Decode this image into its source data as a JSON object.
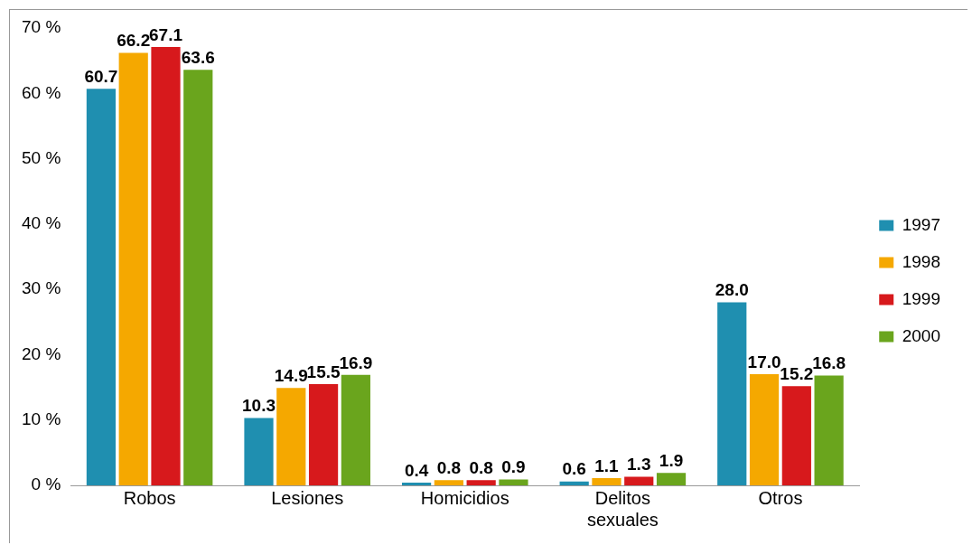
{
  "chart_data": {
    "type": "bar",
    "categories": [
      "Robos",
      "Lesiones",
      "Homicidios",
      "Delitos sexuales",
      "Otros"
    ],
    "series": [
      {
        "name": "1997",
        "color": "#1f8fb0",
        "values": [
          60.7,
          10.3,
          0.4,
          0.6,
          28.0
        ],
        "value_labels": [
          "60.7",
          "10.3",
          "0.4",
          "0.6",
          "28.0"
        ]
      },
      {
        "name": "1998",
        "color": "#f5a800",
        "values": [
          66.2,
          14.9,
          0.8,
          1.1,
          17.0
        ],
        "value_labels": [
          "66.2",
          "14.9",
          "0.8",
          "1.1",
          "17.0"
        ]
      },
      {
        "name": "1999",
        "color": "#d7191c",
        "values": [
          67.1,
          15.5,
          0.8,
          1.3,
          15.2
        ],
        "value_labels": [
          "67.1",
          "15.5",
          "0.8",
          "1.3",
          "15.2"
        ]
      },
      {
        "name": "2000",
        "color": "#6aa51d",
        "values": [
          63.6,
          16.9,
          0.9,
          1.9,
          16.8
        ],
        "value_labels": [
          "63.6",
          "16.9",
          "0.9",
          "1.9",
          "16.8"
        ]
      }
    ],
    "ylim": [
      0,
      70
    ],
    "yticks": [
      {
        "value": 0,
        "label": "0 %"
      },
      {
        "value": 10,
        "label": "10 %"
      },
      {
        "value": 20,
        "label": "20 %"
      },
      {
        "value": 30,
        "label": "30 %"
      },
      {
        "value": 40,
        "label": "40 %"
      },
      {
        "value": 50,
        "label": "50 %"
      },
      {
        "value": 60,
        "label": "60 %"
      },
      {
        "value": 70,
        "label": "70 %"
      }
    ],
    "grid": false,
    "legend": "right"
  }
}
